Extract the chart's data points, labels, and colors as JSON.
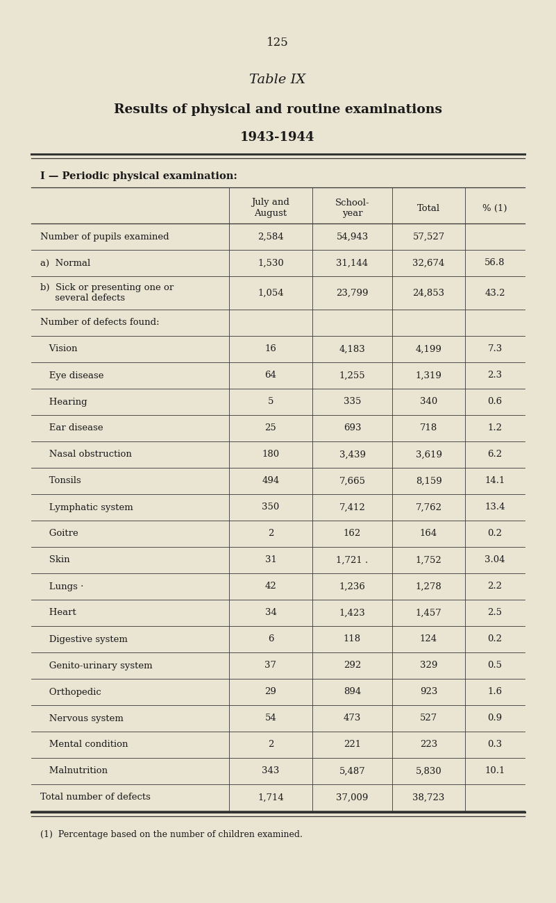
{
  "page_number": "125",
  "title_line1": "Table IX",
  "title_line2": "Results of physical and routine examinations",
  "title_line3": "1943-1944",
  "section_header": "I — Periodic physical examination:",
  "col_headers": [
    "July and\nAugust",
    "School-\nyear",
    "Total",
    "% (1)"
  ],
  "rows": [
    {
      "label": "Number of pupils examined",
      "indent": 0,
      "vals": [
        "2,584",
        "54,943",
        "57,527",
        ""
      ]
    },
    {
      "label": "a)  Normal",
      "indent": 1,
      "vals": [
        "1,530",
        "31,144",
        "32,674",
        "56.8"
      ]
    },
    {
      "label": "b)  Sick or presenting one or\n     several defects",
      "indent": 1,
      "vals": [
        "1,054",
        "23,799",
        "24,853",
        "43.2"
      ]
    },
    {
      "label": "Number of defects found:",
      "indent": 0,
      "vals": [
        "",
        "",
        "",
        ""
      ]
    },
    {
      "label": "   Vision",
      "indent": 2,
      "vals": [
        "16",
        "4,183",
        "4,199",
        "7.3"
      ]
    },
    {
      "label": "   Eye disease",
      "indent": 2,
      "vals": [
        "64",
        "1,255",
        "1,319",
        "2.3"
      ]
    },
    {
      "label": "   Hearing",
      "indent": 2,
      "vals": [
        "5",
        "335",
        "340",
        "0.6"
      ]
    },
    {
      "label": "   Ear disease",
      "indent": 2,
      "vals": [
        "25",
        "693",
        "718",
        "1.2"
      ]
    },
    {
      "label": "   Nasal obstruction",
      "indent": 2,
      "vals": [
        "180",
        "3,439",
        "3,619",
        "6.2"
      ]
    },
    {
      "label": "   Tonsils",
      "indent": 2,
      "vals": [
        "494",
        "7,665",
        "8,159",
        "14.1"
      ]
    },
    {
      "label": "   Lymphatic system",
      "indent": 2,
      "vals": [
        "350",
        "7,412",
        "7,762",
        "13.4"
      ]
    },
    {
      "label": "   Goitre",
      "indent": 2,
      "vals": [
        "2",
        "162",
        "164",
        "0.2"
      ]
    },
    {
      "label": "   Skin",
      "indent": 2,
      "vals": [
        "31",
        "1,721 .",
        "1,752",
        "3.04"
      ]
    },
    {
      "label": "   Lungs ·",
      "indent": 2,
      "vals": [
        "42",
        "1,236",
        "1,278",
        "2.2"
      ]
    },
    {
      "label": "   Heart",
      "indent": 2,
      "vals": [
        "34",
        "1,423",
        "1,457",
        "2.5"
      ]
    },
    {
      "label": "   Digestive system",
      "indent": 2,
      "vals": [
        "6",
        "118",
        "124",
        "0.2"
      ]
    },
    {
      "label": "   Genito-urinary system",
      "indent": 2,
      "vals": [
        "37",
        "292",
        "329",
        "0.5"
      ]
    },
    {
      "label": "   Orthopedic",
      "indent": 2,
      "vals": [
        "29",
        "894",
        "923",
        "1.6"
      ]
    },
    {
      "label": "   Nervous system",
      "indent": 2,
      "vals": [
        "54",
        "473",
        "527",
        "0.9"
      ]
    },
    {
      "label": "   Mental condition",
      "indent": 2,
      "vals": [
        "2",
        "221",
        "223",
        "0.3"
      ]
    },
    {
      "label": "   Malnutrition",
      "indent": 2,
      "vals": [
        "343",
        "5,487",
        "5,830",
        "10.1"
      ]
    },
    {
      "label": "Total number of defects",
      "indent": 0,
      "vals": [
        "1,714",
        "37,009",
        "38,723",
        ""
      ]
    }
  ],
  "footnote": "(1)  Percentage based on the number of children examined.",
  "bg_color": "#EAE4D3",
  "text_color": "#1a1a1a",
  "line_color": "#333333"
}
